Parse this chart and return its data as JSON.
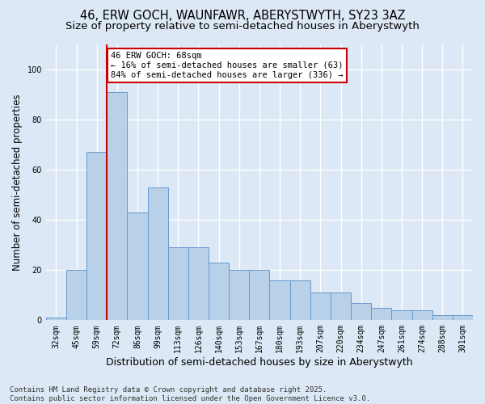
{
  "title_line1": "46, ERW GOCH, WAUNFAWR, ABERYSTWYTH, SY23 3AZ",
  "title_line2": "Size of property relative to semi-detached houses in Aberystwyth",
  "xlabel": "Distribution of semi-detached houses by size in Aberystwyth",
  "ylabel": "Number of semi-detached properties",
  "categories": [
    "32sqm",
    "45sqm",
    "59sqm",
    "72sqm",
    "86sqm",
    "99sqm",
    "113sqm",
    "126sqm",
    "140sqm",
    "153sqm",
    "167sqm",
    "180sqm",
    "193sqm",
    "207sqm",
    "220sqm",
    "234sqm",
    "247sqm",
    "261sqm",
    "274sqm",
    "288sqm",
    "301sqm"
  ],
  "values": [
    1,
    20,
    67,
    91,
    43,
    53,
    29,
    29,
    23,
    20,
    20,
    16,
    16,
    11,
    11,
    7,
    5,
    4,
    4,
    2,
    2
  ],
  "bar_color": "#b8d0e8",
  "bar_edge_color": "#6699cc",
  "vline_color": "#cc0000",
  "annotation_text": "46 ERW GOCH: 68sqm\n← 16% of semi-detached houses are smaller (63)\n84% of semi-detached houses are larger (336) →",
  "annotation_box_color": "#ffffff",
  "annotation_box_edge": "#cc0000",
  "ylim": [
    0,
    110
  ],
  "yticks": [
    0,
    20,
    40,
    60,
    80,
    100
  ],
  "footer": "Contains HM Land Registry data © Crown copyright and database right 2025.\nContains public sector information licensed under the Open Government Licence v3.0.",
  "bg_color": "#dce8f5",
  "plot_bg_color": "#dce8f5",
  "grid_color": "#ffffff",
  "title_fontsize": 10.5,
  "subtitle_fontsize": 9.5,
  "ylabel_fontsize": 8.5,
  "xlabel_fontsize": 9,
  "tick_fontsize": 7,
  "annotation_fontsize": 7.5,
  "footer_fontsize": 6.5
}
